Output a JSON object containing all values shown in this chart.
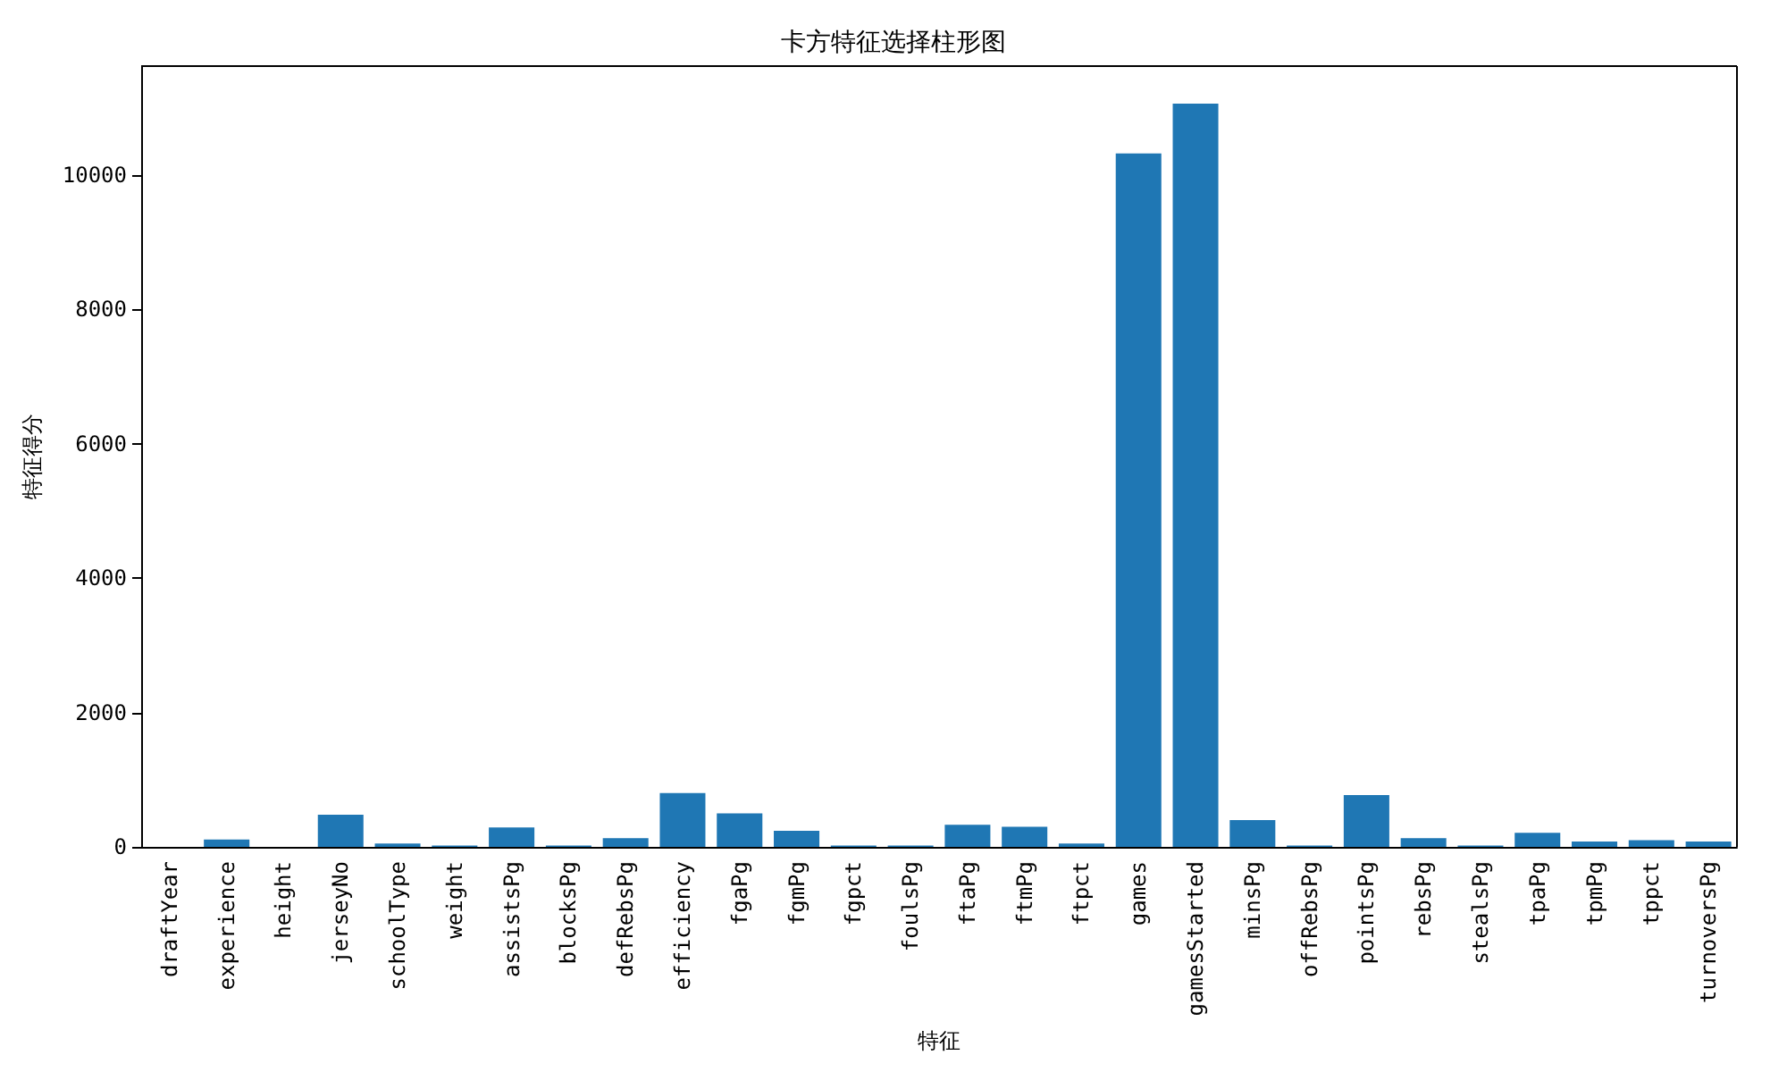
{
  "chart_data": {
    "type": "bar",
    "title": "卡方特征选择柱形图",
    "xlabel": "特征",
    "ylabel": "特征得分",
    "categories": [
      "draftYear",
      "experience",
      "height",
      "jerseyNo",
      "schoolType",
      "weight",
      "assistsPg",
      "blocksPg",
      "defRebsPg",
      "efficiency",
      "fgaPg",
      "fgmPg",
      "fgpct",
      "foulsPg",
      "ftaPg",
      "ftmPg",
      "ftpct",
      "games",
      "gamesStarted",
      "minsPg",
      "offRebsPg",
      "pointsPg",
      "rebsPg",
      "stealsPg",
      "tpaPg",
      "tpmPg",
      "tppct",
      "turnoversPg"
    ],
    "values": [
      0,
      110,
      0,
      480,
      50,
      20,
      290,
      20,
      130,
      800,
      500,
      240,
      20,
      20,
      330,
      300,
      50,
      10320,
      11060,
      400,
      20,
      770,
      130,
      20,
      210,
      80,
      100,
      80
    ],
    "color": "#1f77b4",
    "ylim": [
      0,
      11620
    ],
    "yticks": [
      0,
      2000,
      4000,
      6000,
      8000,
      10000
    ],
    "grid": false
  }
}
